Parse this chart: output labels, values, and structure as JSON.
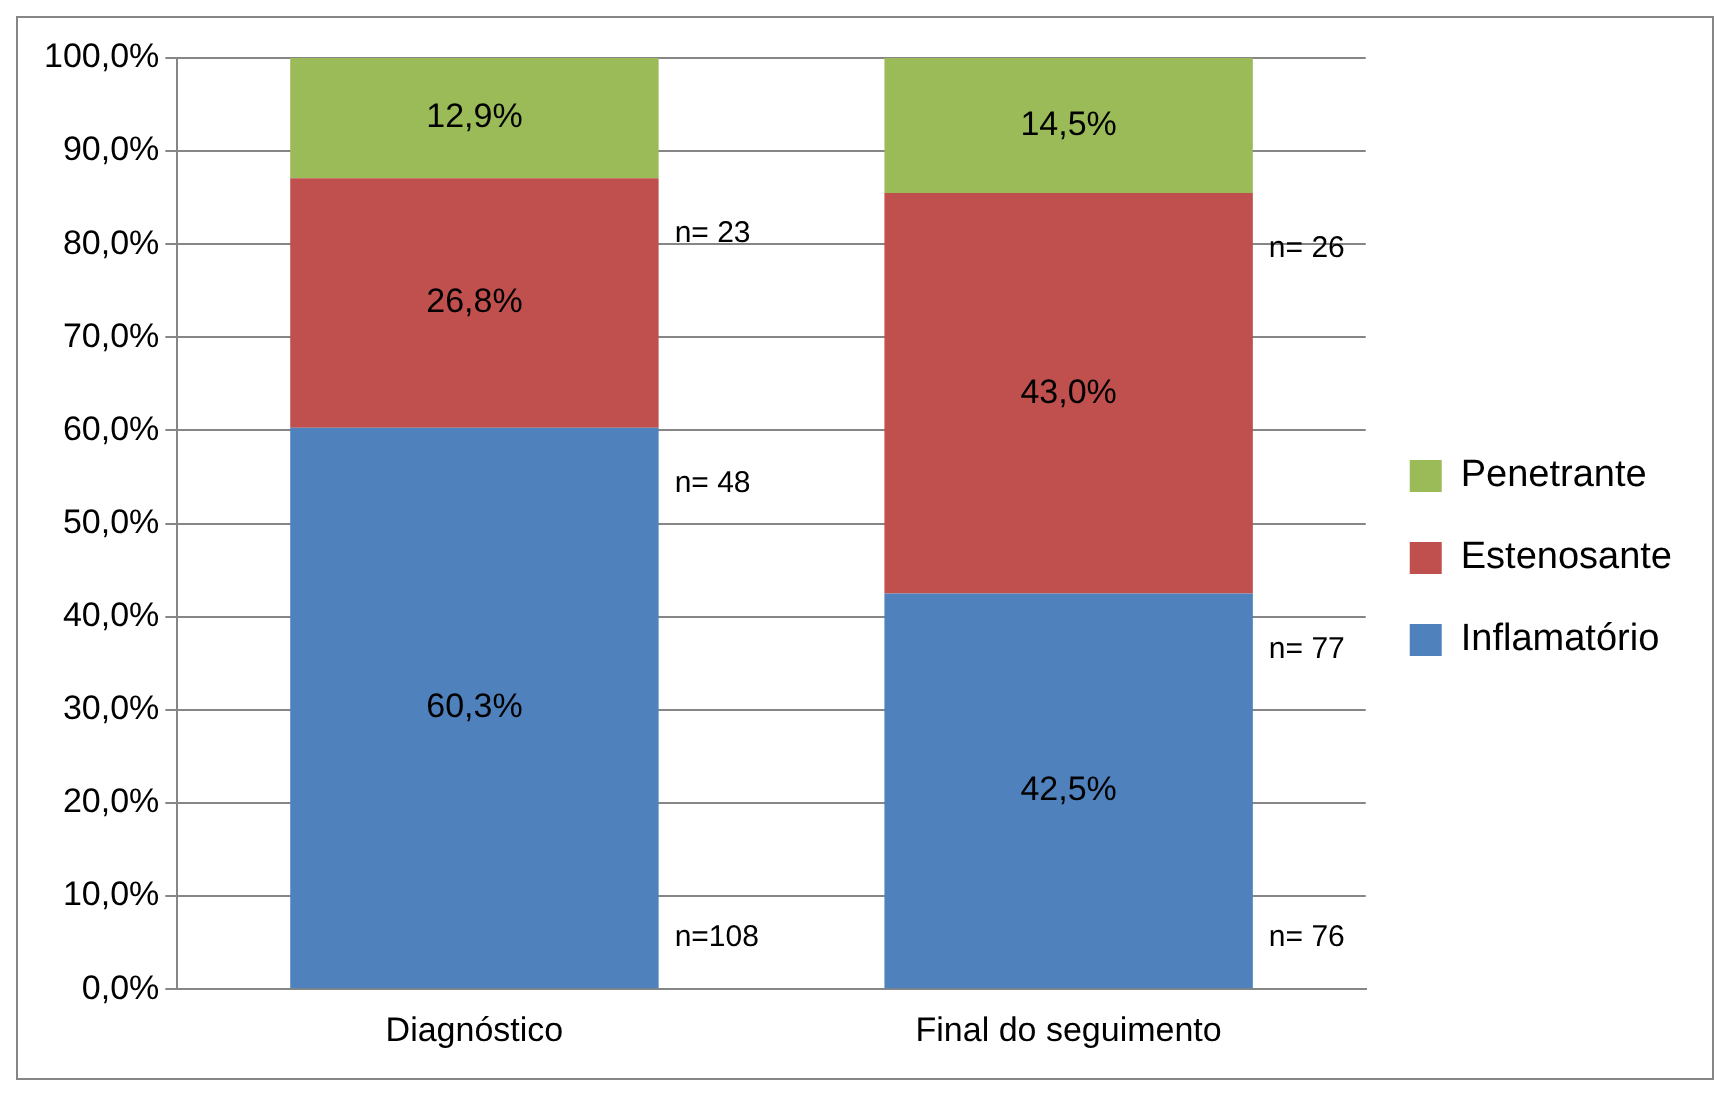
{
  "chart_data": {
    "type": "bar",
    "stacked": true,
    "categories": [
      "Diagnóstico",
      "Final do seguimento"
    ],
    "series": [
      {
        "name": "Inflamatório",
        "color": "#4f81bd",
        "values": [
          60.3,
          42.5
        ],
        "value_labels": [
          "60,3%",
          "42,5%"
        ]
      },
      {
        "name": "Estenosante",
        "color": "#c0504d",
        "values": [
          26.8,
          43.0
        ],
        "value_labels": [
          "26,8%",
          "43,0%"
        ]
      },
      {
        "name": "Penetrante",
        "color": "#9bbb59",
        "values": [
          12.9,
          14.5
        ],
        "value_labels": [
          "12,9%",
          "14,5%"
        ]
      }
    ],
    "ylim": [
      0,
      100
    ],
    "yticks": [
      {
        "value": 0,
        "label": "0,0%"
      },
      {
        "value": 10,
        "label": "10,0%"
      },
      {
        "value": 20,
        "label": "20,0%"
      },
      {
        "value": 30,
        "label": "30,0%"
      },
      {
        "value": 40,
        "label": "40,0%"
      },
      {
        "value": 50,
        "label": "50,0%"
      },
      {
        "value": 60,
        "label": "60,0%"
      },
      {
        "value": 70,
        "label": "70,0%"
      },
      {
        "value": 80,
        "label": "80,0%"
      },
      {
        "value": 90,
        "label": "90,0%"
      },
      {
        "value": 100,
        "label": "100,0%"
      }
    ],
    "grid": "y",
    "legend": "right",
    "annotations": [
      "n= 23",
      "n= 48",
      "n=108",
      "n= 26",
      "n= 77",
      "n= 76"
    ]
  }
}
